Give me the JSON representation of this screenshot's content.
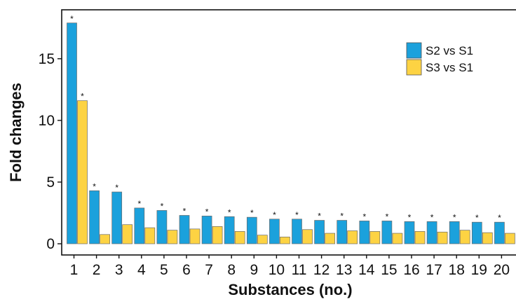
{
  "chart_data": {
    "type": "bar",
    "xlabel": "Substances (no.)",
    "ylabel": "Fold changes",
    "ylim": [
      0,
      18.8
    ],
    "yticks": [
      0,
      5,
      10,
      15
    ],
    "categories": [
      "1",
      "2",
      "3",
      "4",
      "5",
      "6",
      "7",
      "8",
      "9",
      "10",
      "11",
      "12",
      "13",
      "14",
      "15",
      "16",
      "17",
      "18",
      "19",
      "20"
    ],
    "series": [
      {
        "name": "S2 vs S1",
        "color": "#1ba1dc",
        "values": [
          17.9,
          4.3,
          4.2,
          2.9,
          2.7,
          2.3,
          2.25,
          2.2,
          2.15,
          2.0,
          2.0,
          1.9,
          1.9,
          1.85,
          1.85,
          1.8,
          1.8,
          1.8,
          1.75,
          1.75
        ],
        "significance": [
          "*",
          "*",
          "*",
          "*",
          "*",
          "*",
          "*",
          "*",
          "*",
          "*",
          "*",
          "*",
          "*",
          "*",
          "*",
          "*",
          "*",
          "*",
          "*",
          "*"
        ]
      },
      {
        "name": "S3 vs S1",
        "color": "#fdd343",
        "values": [
          11.6,
          0.75,
          1.55,
          1.3,
          1.1,
          1.2,
          1.4,
          1.0,
          0.7,
          0.55,
          1.15,
          0.85,
          1.05,
          1.0,
          0.85,
          1.0,
          0.95,
          1.1,
          0.9,
          0.85
        ],
        "significance": [
          "*",
          "",
          "",
          "",
          "",
          "",
          "",
          "",
          "",
          "",
          "",
          "",
          "",
          "",
          "",
          "",
          "",
          "",
          "",
          ""
        ]
      }
    ],
    "grid": false,
    "legend_position": "top-right"
  }
}
